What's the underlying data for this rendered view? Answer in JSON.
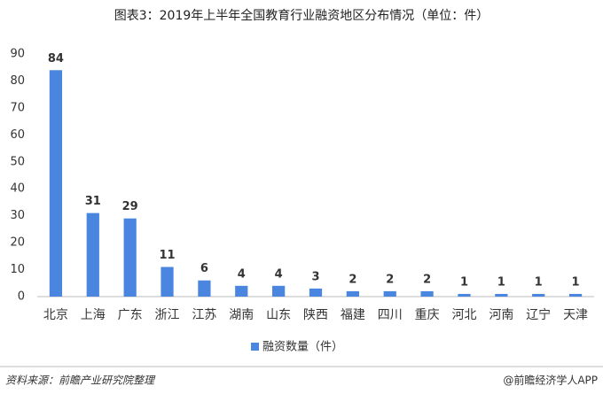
{
  "chart_data": {
    "type": "bar",
    "title": "图表3：2019年上半年全国教育行业融资地区分布情况（单位：件）",
    "categories": [
      "北京",
      "上海",
      "广东",
      "浙江",
      "江苏",
      "湖南",
      "山东",
      "陕西",
      "福建",
      "四川",
      "重庆",
      "河北",
      "河南",
      "辽宁",
      "天津"
    ],
    "series": [
      {
        "name": "融资数量（件）",
        "color": "#4a86e0",
        "values": [
          84,
          31,
          29,
          11,
          6,
          4,
          4,
          3,
          2,
          2,
          2,
          1,
          1,
          1,
          1
        ]
      }
    ],
    "ylim": [
      0,
      90
    ],
    "yticks": [
      0,
      10,
      20,
      30,
      40,
      50,
      60,
      70,
      80,
      90
    ],
    "grid": false,
    "legend": "bottom"
  },
  "source": "资料来源：前瞻产业研究院整理",
  "brand": "@前瞻经济学人APP"
}
